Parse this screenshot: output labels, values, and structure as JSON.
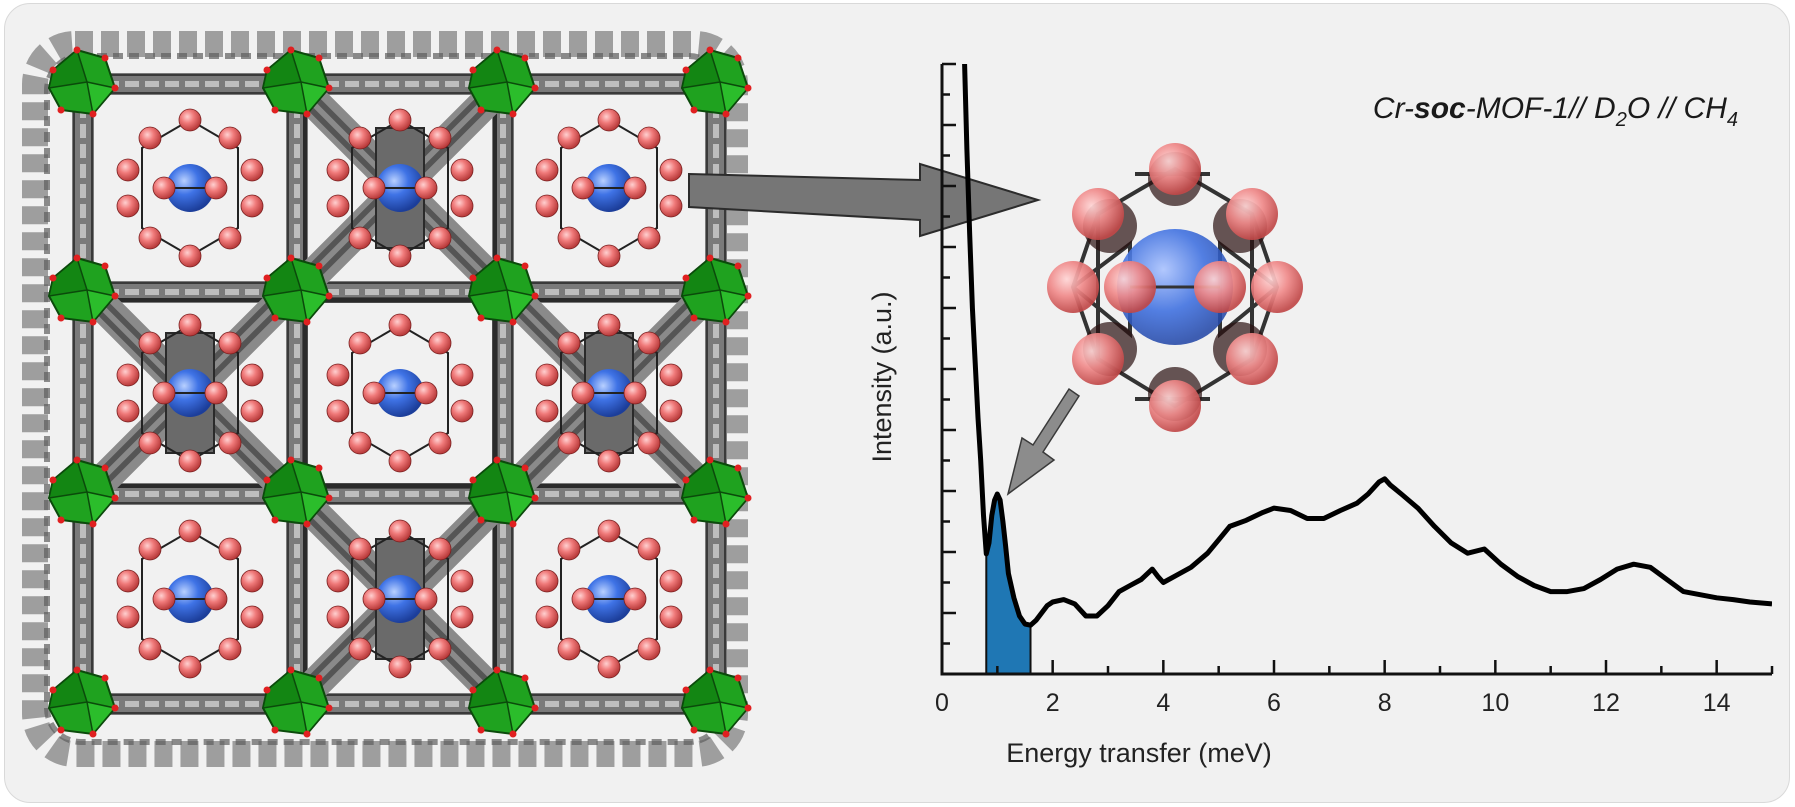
{
  "chart_data": {
    "type": "line",
    "title_parts": {
      "prefix": "Cr-",
      "bold": "soc",
      "middle": "-MOF-1// D",
      "sub1": "2",
      "after_sub1": "O // CH",
      "sub2": "4"
    },
    "xlabel": "Energy transfer (meV)",
    "ylabel": "Intensity (a.u.)",
    "xlim": [
      0,
      15
    ],
    "ylim": [
      0,
      10
    ],
    "xticks": [
      "0",
      "2",
      "4",
      "6",
      "8",
      "10",
      "12",
      "14"
    ],
    "yticks_labeled": false,
    "grid": false,
    "highlight_region": {
      "x_start": 0.8,
      "x_end": 1.6,
      "color": "#1f77b4"
    },
    "series": [
      {
        "color": "#000000",
        "x": [
          0.4,
          0.45,
          0.5,
          0.55,
          0.6,
          0.65,
          0.7,
          0.75,
          0.8,
          0.85,
          0.9,
          0.95,
          1.0,
          1.05,
          1.1,
          1.15,
          1.2,
          1.3,
          1.4,
          1.5,
          1.6,
          1.7,
          1.8,
          1.9,
          2.0,
          2.2,
          2.4,
          2.6,
          2.8,
          3.0,
          3.2,
          3.4,
          3.6,
          3.8,
          3.9,
          4.0,
          4.2,
          4.5,
          4.8,
          5.0,
          5.2,
          5.5,
          5.8,
          6.0,
          6.3,
          6.6,
          6.9,
          7.2,
          7.5,
          7.7,
          7.9,
          8.0,
          8.1,
          8.3,
          8.6,
          8.9,
          9.2,
          9.5,
          9.8,
          10.1,
          10.4,
          10.7,
          11.0,
          11.3,
          11.6,
          11.9,
          12.2,
          12.5,
          12.8,
          13.1,
          13.4,
          13.7,
          14.0,
          14.3,
          14.6,
          15.0
        ],
        "y": [
          10.3,
          8.6,
          7.2,
          6.0,
          5.1,
          4.2,
          3.5,
          2.6,
          1.97,
          2.15,
          2.6,
          2.85,
          2.95,
          2.85,
          2.5,
          2.1,
          1.65,
          1.25,
          0.95,
          0.82,
          0.8,
          0.88,
          1.0,
          1.12,
          1.18,
          1.22,
          1.15,
          0.95,
          0.95,
          1.12,
          1.35,
          1.45,
          1.55,
          1.72,
          1.6,
          1.5,
          1.6,
          1.75,
          1.98,
          2.2,
          2.42,
          2.52,
          2.65,
          2.72,
          2.68,
          2.55,
          2.55,
          2.68,
          2.8,
          2.95,
          3.15,
          3.2,
          3.1,
          2.95,
          2.72,
          2.42,
          2.15,
          1.98,
          2.05,
          1.8,
          1.6,
          1.45,
          1.35,
          1.35,
          1.4,
          1.55,
          1.72,
          1.8,
          1.75,
          1.55,
          1.35,
          1.3,
          1.25,
          1.22,
          1.18,
          1.15
        ]
      }
    ]
  }
}
